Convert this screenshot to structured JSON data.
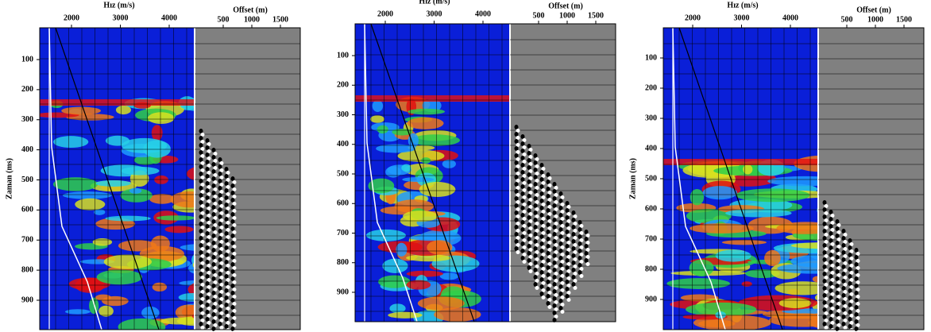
{
  "panels": [
    {
      "velocity_axis": {
        "label": "Hız (m/s)",
        "ticks": [
          2000,
          3000,
          4000
        ]
      },
      "offset_axis": {
        "label": "Offset (m)",
        "ticks": [
          500,
          1000,
          1500
        ]
      },
      "time_axis": {
        "label": "Zaman (ms)",
        "ticks": [
          100,
          200,
          300,
          400,
          500,
          600,
          700,
          800,
          900
        ]
      }
    },
    {
      "velocity_axis": {
        "label": "Hız (m/s)",
        "ticks": [
          2000,
          3000,
          4000
        ]
      },
      "offset_axis": {
        "label": "Offset (m)",
        "ticks": [
          500,
          1000,
          1500
        ]
      },
      "time_axis": {
        "ticks": [
          100,
          200,
          300,
          400,
          500,
          600,
          700,
          800,
          900
        ]
      }
    },
    {
      "velocity_axis": {
        "label": "Hız (m/s)",
        "ticks": [
          2000,
          3000,
          4000
        ]
      },
      "offset_axis": {
        "label": "Offset (m)",
        "ticks": [
          500,
          1000,
          1500
        ]
      },
      "time_axis": {
        "label": "Zaman (ms)",
        "ticks": [
          100,
          200,
          300,
          400,
          500,
          600,
          700,
          800,
          900
        ]
      }
    }
  ]
}
